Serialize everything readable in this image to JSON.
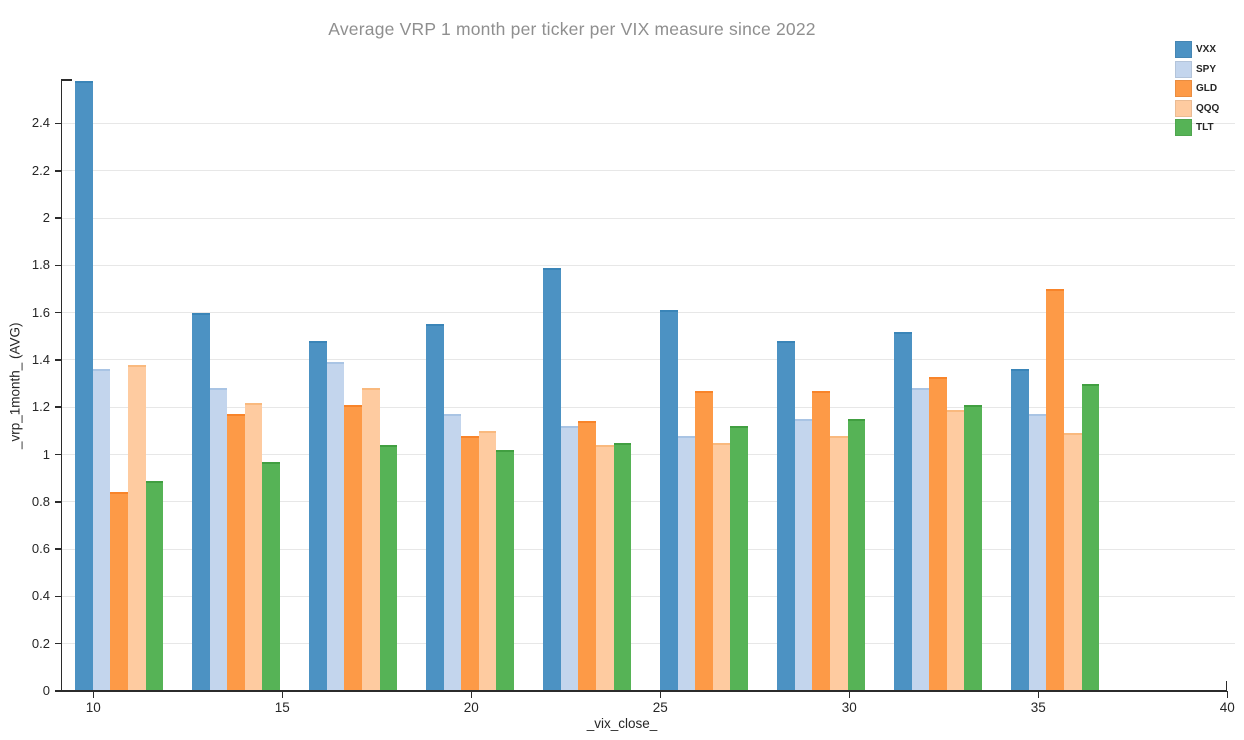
{
  "page": {
    "background": "#ffffff"
  },
  "chart_data": {
    "type": "bar",
    "title": "Average VRP 1 month per ticker per VIX measure since 2022",
    "xlabel": "_vix_close_",
    "ylabel": "_vrp_1month_ (AVG)",
    "x_ticks": [
      10,
      15,
      20,
      25,
      30,
      35,
      40
    ],
    "y_ticks": [
      0,
      0.2,
      0.4,
      0.6,
      0.8,
      1,
      1.2,
      1.4,
      1.6,
      1.8,
      2,
      2.2,
      2.4
    ],
    "y_tick_labels": [
      "0",
      "0.2",
      "0.4",
      "0.6",
      "0.8",
      "1",
      "1.2",
      "1.4",
      "1.6",
      "1.8",
      "2",
      "2.2",
      "2.4"
    ],
    "xlim": [
      9.2,
      40.2
    ],
    "ylim": [
      0,
      2.58
    ],
    "grid": "horizontal-only",
    "legend_position": "top-right-inside",
    "group_x_starts": [
      9.52,
      12.61,
      15.71,
      18.8,
      21.9,
      24.99,
      28.09,
      31.18,
      34.28
    ],
    "group_bar_width_x": 0.466,
    "series": [
      {
        "name": "VXX",
        "color": "#4C92C3",
        "edge_color": "#3A85B8",
        "values": [
          2.58,
          1.6,
          1.48,
          1.55,
          1.79,
          1.61,
          1.48,
          1.52,
          1.36
        ]
      },
      {
        "name": "SPY",
        "color": "#C3D5ED",
        "edge_color": "#A9C4E4",
        "values": [
          1.36,
          1.28,
          1.39,
          1.17,
          1.12,
          1.08,
          1.15,
          1.28,
          1.17
        ]
      },
      {
        "name": "GLD",
        "color": "#FD9A47",
        "edge_color": "#F8842A",
        "values": [
          0.84,
          1.17,
          1.21,
          1.08,
          1.14,
          1.27,
          1.27,
          1.33,
          1.7
        ]
      },
      {
        "name": "QQQ",
        "color": "#FECBA0",
        "edge_color": "#F9B97E",
        "values": [
          1.38,
          1.22,
          1.28,
          1.1,
          1.04,
          1.05,
          1.08,
          1.19,
          1.09
        ]
      },
      {
        "name": "TLT",
        "color": "#56B356",
        "edge_color": "#419F41",
        "values": [
          0.89,
          0.97,
          1.04,
          1.02,
          1.05,
          1.12,
          1.15,
          1.21,
          1.3
        ]
      }
    ]
  }
}
